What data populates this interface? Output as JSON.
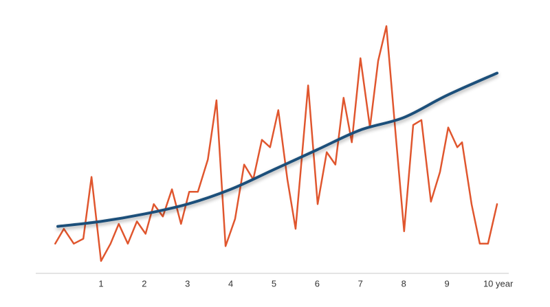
{
  "chart_data": {
    "type": "line",
    "xlim": [
      -0.51,
      10.43
    ],
    "ylim": [
      0,
      100
    ],
    "xticks": [
      1,
      2,
      3,
      4,
      5,
      6,
      7,
      8,
      9,
      {
        "value": 10,
        "label": "10 year"
      }
    ],
    "series": [
      {
        "color": "#e0562e",
        "x": [
          -0.06,
          0.14,
          0.37,
          0.59,
          0.78,
          1.0,
          1.22,
          1.41,
          1.62,
          1.83,
          2.03,
          2.22,
          2.43,
          2.64,
          2.85,
          3.04,
          3.24,
          3.47,
          3.67,
          3.88,
          4.1,
          4.31,
          4.52,
          4.72,
          4.91,
          5.1,
          5.31,
          5.5,
          5.79,
          6.01,
          6.22,
          6.42,
          6.61,
          6.8,
          7.0,
          7.22,
          7.41,
          7.6,
          7.82,
          8.01,
          8.22,
          8.41,
          8.63,
          8.84,
          9.03,
          9.24,
          9.35,
          9.57,
          9.76,
          9.95,
          10.16
        ],
        "values": [
          12,
          18,
          12,
          14,
          39,
          5,
          12,
          20,
          12,
          21,
          16,
          28,
          23,
          34,
          20,
          33,
          33,
          46,
          70,
          11,
          22,
          44,
          38,
          54,
          51,
          66,
          38,
          18,
          76,
          28,
          49,
          44,
          71,
          53,
          87,
          59,
          86,
          100,
          55,
          17,
          60,
          62,
          29,
          41,
          59,
          51,
          53,
          28,
          12,
          12,
          28
        ]
      },
      {
        "color": "#1b4f7a",
        "x": [
          0,
          1,
          2,
          3,
          4,
          5,
          6,
          7,
          8,
          9,
          10.16
        ],
        "values": [
          19,
          21,
          24,
          28,
          34,
          42,
          50,
          58,
          63,
          72,
          81
        ]
      }
    ]
  }
}
